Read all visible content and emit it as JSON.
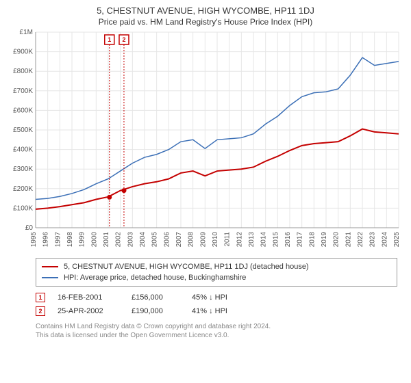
{
  "title_line1": "5, CHESTNUT AVENUE, HIGH WYCOMBE, HP11 1DJ",
  "title_line2": "Price paid vs. HM Land Registry's House Price Index (HPI)",
  "chart": {
    "type": "line",
    "background_color": "#ffffff",
    "grid_color": "#e6e6e6",
    "axis_color": "#999999",
    "x_years": [
      1995,
      1996,
      1997,
      1998,
      1999,
      2000,
      2001,
      2002,
      2003,
      2004,
      2005,
      2006,
      2007,
      2008,
      2009,
      2010,
      2011,
      2012,
      2013,
      2014,
      2015,
      2016,
      2017,
      2018,
      2019,
      2020,
      2021,
      2022,
      2023,
      2024,
      2025
    ],
    "xlim": [
      1995,
      2025
    ],
    "ylim": [
      0,
      1000000
    ],
    "ytick_step": 100000,
    "ytick_labels": [
      "£0",
      "£100K",
      "£200K",
      "£300K",
      "£400K",
      "£500K",
      "£600K",
      "£700K",
      "£800K",
      "£900K",
      "£1M"
    ],
    "series": [
      {
        "name": "price_paid",
        "color": "#c40000",
        "line_width": 2,
        "points": [
          [
            1995,
            95000
          ],
          [
            1996,
            100000
          ],
          [
            1997,
            108000
          ],
          [
            1998,
            118000
          ],
          [
            1999,
            128000
          ],
          [
            2000,
            145000
          ],
          [
            2001,
            158000
          ],
          [
            2002,
            190000
          ],
          [
            2003,
            210000
          ],
          [
            2004,
            225000
          ],
          [
            2005,
            235000
          ],
          [
            2006,
            250000
          ],
          [
            2007,
            280000
          ],
          [
            2008,
            290000
          ],
          [
            2009,
            265000
          ],
          [
            2010,
            290000
          ],
          [
            2011,
            295000
          ],
          [
            2012,
            300000
          ],
          [
            2013,
            310000
          ],
          [
            2014,
            340000
          ],
          [
            2015,
            365000
          ],
          [
            2016,
            395000
          ],
          [
            2017,
            420000
          ],
          [
            2018,
            430000
          ],
          [
            2019,
            435000
          ],
          [
            2020,
            440000
          ],
          [
            2021,
            470000
          ],
          [
            2022,
            505000
          ],
          [
            2023,
            490000
          ],
          [
            2024,
            485000
          ],
          [
            2025,
            480000
          ]
        ]
      },
      {
        "name": "hpi",
        "color": "#3b6fb6",
        "line_width": 1.5,
        "points": [
          [
            1995,
            145000
          ],
          [
            1996,
            150000
          ],
          [
            1997,
            160000
          ],
          [
            1998,
            175000
          ],
          [
            1999,
            195000
          ],
          [
            2000,
            225000
          ],
          [
            2001,
            250000
          ],
          [
            2002,
            290000
          ],
          [
            2003,
            330000
          ],
          [
            2004,
            360000
          ],
          [
            2005,
            375000
          ],
          [
            2006,
            400000
          ],
          [
            2007,
            440000
          ],
          [
            2008,
            450000
          ],
          [
            2009,
            405000
          ],
          [
            2010,
            450000
          ],
          [
            2011,
            455000
          ],
          [
            2012,
            460000
          ],
          [
            2013,
            480000
          ],
          [
            2014,
            530000
          ],
          [
            2015,
            570000
          ],
          [
            2016,
            625000
          ],
          [
            2017,
            670000
          ],
          [
            2018,
            690000
          ],
          [
            2019,
            695000
          ],
          [
            2020,
            710000
          ],
          [
            2021,
            780000
          ],
          [
            2022,
            870000
          ],
          [
            2023,
            830000
          ],
          [
            2024,
            840000
          ],
          [
            2025,
            850000
          ]
        ]
      }
    ],
    "markers": [
      {
        "num": "1",
        "year": 2001.1,
        "price": 156000,
        "color": "#c40000"
      },
      {
        "num": "2",
        "year": 2002.3,
        "price": 190000,
        "color": "#c40000"
      }
    ]
  },
  "legend": {
    "items": [
      {
        "color": "#c40000",
        "label": "5, CHESTNUT AVENUE, HIGH WYCOMBE, HP11 1DJ (detached house)"
      },
      {
        "color": "#3b6fb6",
        "label": "HPI: Average price, detached house, Buckinghamshire"
      }
    ]
  },
  "data_rows": [
    {
      "num": "1",
      "color": "#c40000",
      "date": "16-FEB-2001",
      "price": "£156,000",
      "pct": "45% ↓ HPI"
    },
    {
      "num": "2",
      "color": "#c40000",
      "date": "25-APR-2002",
      "price": "£190,000",
      "pct": "41% ↓ HPI"
    }
  ],
  "footer_line1": "Contains HM Land Registry data © Crown copyright and database right 2024.",
  "footer_line2": "This data is licensed under the Open Government Licence v3.0."
}
